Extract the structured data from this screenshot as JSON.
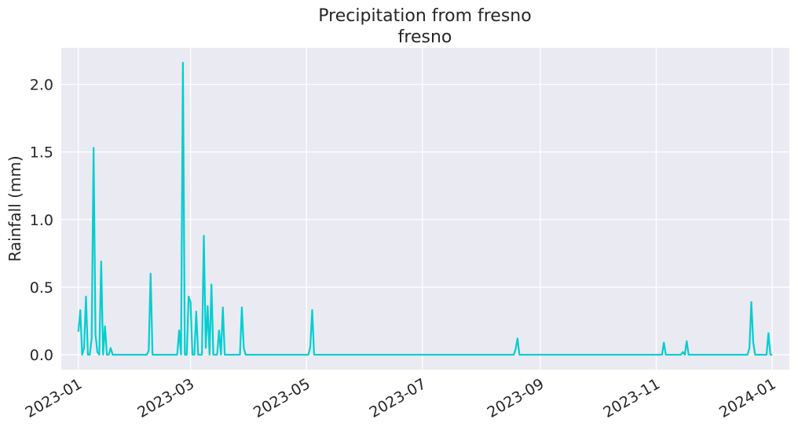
{
  "chart_data": {
    "type": "line",
    "title": "Precipitation from fresno",
    "subtitle": "fresno",
    "xlabel": "",
    "ylabel": "Rainfall (mm)",
    "xlim": [
      "2022-12-23",
      "2024-01-10"
    ],
    "ylim": [
      -0.11,
      2.27
    ],
    "grid": true,
    "line_color": "#00CED1",
    "background_color": "#EAEAF2",
    "x_ticks": [
      "2023-01",
      "2023-03",
      "2023-05",
      "2023-07",
      "2023-09",
      "2023-11",
      "2024-01"
    ],
    "y_ticks": [
      "0.0",
      "0.5",
      "1.0",
      "1.5",
      "2.0"
    ],
    "series": [
      {
        "x": [
          "2023-01-01",
          "2023-01-02",
          "2023-01-03",
          "2023-01-04",
          "2023-01-05",
          "2023-01-06",
          "2023-01-07",
          "2023-01-08",
          "2023-01-09",
          "2023-01-10",
          "2023-01-11",
          "2023-01-12",
          "2023-01-13",
          "2023-01-14",
          "2023-01-15",
          "2023-01-16",
          "2023-01-17",
          "2023-01-18",
          "2023-01-19",
          "2023-01-20",
          "2023-01-21",
          "2023-02-06",
          "2023-02-07",
          "2023-02-08",
          "2023-02-09",
          "2023-02-21",
          "2023-02-22",
          "2023-02-23",
          "2023-02-24",
          "2023-02-25",
          "2023-02-26",
          "2023-02-27",
          "2023-02-28",
          "2023-03-01",
          "2023-03-02",
          "2023-03-03",
          "2023-03-04",
          "2023-03-05",
          "2023-03-06",
          "2023-03-07",
          "2023-03-08",
          "2023-03-09",
          "2023-03-10",
          "2023-03-11",
          "2023-03-12",
          "2023-03-13",
          "2023-03-14",
          "2023-03-15",
          "2023-03-16",
          "2023-03-17",
          "2023-03-18",
          "2023-03-19",
          "2023-03-20",
          "2023-03-21",
          "2023-03-22",
          "2023-03-27",
          "2023-03-28",
          "2023-03-29",
          "2023-03-30",
          "2023-05-02",
          "2023-05-03",
          "2023-05-04",
          "2023-05-05",
          "2023-08-18",
          "2023-08-19",
          "2023-08-20",
          "2023-08-21",
          "2023-11-04",
          "2023-11-05",
          "2023-11-06",
          "2023-11-14",
          "2023-11-15",
          "2023-11-16",
          "2023-11-17",
          "2023-11-18",
          "2023-12-19",
          "2023-12-20",
          "2023-12-21",
          "2023-12-22",
          "2023-12-23",
          "2023-12-29",
          "2023-12-30",
          "2023-12-31",
          "2024-01-01"
        ],
        "values": [
          0.17,
          0.33,
          0.0,
          0.05,
          0.43,
          0.0,
          0.0,
          0.12,
          1.53,
          0.15,
          0.02,
          0.0,
          0.69,
          0.0,
          0.21,
          0.0,
          0.0,
          0.05,
          0.0,
          0.0,
          0.0,
          0.0,
          0.03,
          0.6,
          0.0,
          0.0,
          0.0,
          0.18,
          0.0,
          2.16,
          0.0,
          0.0,
          0.43,
          0.39,
          0.0,
          0.0,
          0.32,
          0.0,
          0.0,
          0.0,
          0.88,
          0.05,
          0.36,
          0.0,
          0.52,
          0.0,
          0.0,
          0.0,
          0.18,
          0.0,
          0.35,
          0.0,
          0.0,
          0.0,
          0.0,
          0.0,
          0.35,
          0.05,
          0.0,
          0.0,
          0.06,
          0.33,
          0.0,
          0.0,
          0.04,
          0.12,
          0.0,
          0.0,
          0.09,
          0.0,
          0.0,
          0.02,
          0.0,
          0.1,
          0.0,
          0.0,
          0.05,
          0.39,
          0.09,
          0.0,
          0.0,
          0.16,
          0.0,
          0.0
        ]
      }
    ]
  }
}
